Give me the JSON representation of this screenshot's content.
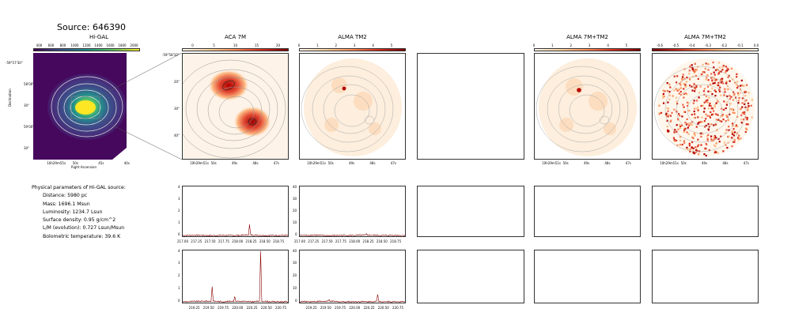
{
  "title": "Source: 646390",
  "panels": {
    "higal": {
      "title": "Hi-GAL",
      "colorbar_ticks": [
        "400",
        "600",
        "800",
        "1000",
        "1200",
        "1400",
        "1600",
        "1800",
        "2000"
      ],
      "ra_ticks": [
        "10h29m55s",
        "50s",
        "45s",
        "40s"
      ],
      "dec_ticks": [
        "-59°57'30\"",
        "58'00\"",
        "30\"",
        "59'00\"",
        "30\""
      ],
      "xlabel": "Right Ascension",
      "ylabel": "Declination"
    },
    "aca7m": {
      "title": "ACA 7M",
      "colorbar_ticks": [
        "0",
        "5",
        "10",
        "15",
        "20"
      ],
      "ra_ticks": [
        "10h29m51s",
        "50s",
        "49s",
        "48s",
        "47s"
      ],
      "dec_ticks": [
        "-59°58'10\"",
        "20\"",
        "30\"",
        "40\""
      ]
    },
    "tm2": {
      "title": "ALMA TM2",
      "colorbar_ticks": [
        "0",
        "1",
        "2",
        "3",
        "4",
        "5"
      ],
      "ra_ticks": [
        "10h29m51s",
        "50s",
        "49s",
        "48s",
        "47s"
      ]
    },
    "combo": {
      "title": "ALMA 7M+TM2",
      "colorbar_ticks": [
        "0",
        "1",
        "2",
        "3",
        "4",
        "5"
      ],
      "ra_ticks": [
        "10h29m51s",
        "50s",
        "49s",
        "48s",
        "47s"
      ]
    },
    "combo_neg": {
      "title": "ALMA 7M+TM2",
      "colorbar_ticks": [
        "-0.6",
        "-0.5",
        "-0.4",
        "-0.3",
        "-0.2",
        "-0.1",
        "0.0"
      ],
      "ra_ticks": [
        "10h29m51s",
        "50s",
        "49s",
        "48s",
        "47s"
      ]
    }
  },
  "physical": {
    "heading": "Physical parameters of Hi-GAL source:",
    "distance": "Distance: 5980 pc",
    "mass": "Mass: 1696.1 Msun",
    "luminosity": "Luminosity: 1234.7 Lsun",
    "surface_density": "Surface density: 0.95 g/cm^2",
    "lm": "L/M (evolution): 0.727 Lsun/Msun",
    "tbol": "Bolometric temperature: 39.6 K"
  },
  "chart_data": [
    {
      "type": "line",
      "panel": "ACA 7M spectrum, upper row",
      "x_ticks": [
        "217.00",
        "217.25",
        "217.50",
        "217.75",
        "218.00",
        "218.25",
        "218.50",
        "218.75"
      ],
      "y_ticks": [
        "0",
        "1",
        "2",
        "3",
        "4"
      ],
      "xlim": [
        217.0,
        218.95
      ],
      "ylim": [
        -0.2,
        4.1
      ],
      "x": [
        217.0,
        217.25,
        217.5,
        217.75,
        218.0,
        218.2,
        218.22,
        218.24,
        218.5,
        218.75,
        218.95
      ],
      "y": [
        0.0,
        0.02,
        -0.01,
        0.01,
        0.0,
        0.05,
        0.9,
        0.05,
        0.0,
        0.01,
        0.0
      ],
      "color": "#8b0000"
    },
    {
      "type": "line",
      "panel": "ALMA TM2 spectrum, upper row",
      "x_ticks": [
        "217.00",
        "217.25",
        "217.50",
        "217.75",
        "218.00",
        "218.25",
        "218.50",
        "218.75"
      ],
      "y_ticks": [
        "0",
        "10",
        "20",
        "30",
        "40"
      ],
      "xlim": [
        217.0,
        218.95
      ],
      "ylim": [
        -2,
        41
      ],
      "x": [
        217.0,
        217.25,
        217.5,
        217.75,
        218.0,
        218.2,
        218.22,
        218.24,
        218.5,
        218.75,
        218.95
      ],
      "y": [
        0.0,
        0.3,
        -0.2,
        0.1,
        0.0,
        0.3,
        1.2,
        0.3,
        0.0,
        0.1,
        0.0
      ],
      "color": "#8b0000"
    },
    {
      "type": "line",
      "panel": "ACA 7M spectrum, lower row",
      "x_ticks": [
        "219.25",
        "219.50",
        "219.75",
        "220.00",
        "220.25",
        "220.50",
        "220.75"
      ],
      "y_ticks": [
        "0",
        "1",
        "2",
        "3",
        "4"
      ],
      "xlim": [
        219.05,
        220.9
      ],
      "ylim": [
        -0.2,
        4.1
      ],
      "x": [
        219.05,
        219.25,
        219.54,
        219.56,
        219.58,
        219.75,
        219.93,
        219.95,
        219.97,
        220.25,
        220.38,
        220.4,
        220.42,
        220.6,
        220.9
      ],
      "y": [
        0.0,
        0.02,
        0.05,
        1.2,
        0.05,
        0.0,
        0.05,
        0.4,
        0.05,
        0.0,
        0.05,
        4.0,
        0.05,
        0.0,
        0.0
      ],
      "color": "#8b0000"
    },
    {
      "type": "line",
      "panel": "ALMA TM2 spectrum, lower row",
      "x_ticks": [
        "219.25",
        "219.50",
        "219.75",
        "220.00",
        "220.25",
        "220.50",
        "220.75"
      ],
      "y_ticks": [
        "0",
        "10",
        "20",
        "30",
        "40"
      ],
      "xlim": [
        219.05,
        220.9
      ],
      "ylim": [
        -2,
        41
      ],
      "x": [
        219.05,
        219.25,
        219.54,
        219.56,
        219.58,
        219.75,
        220.0,
        220.25,
        220.38,
        220.4,
        220.42,
        220.6,
        220.9
      ],
      "y": [
        0.0,
        0.2,
        0.3,
        1.5,
        0.3,
        0.0,
        0.1,
        0.0,
        0.3,
        5.5,
        0.3,
        0.0,
        0.0
      ],
      "color": "#8b0000"
    }
  ]
}
